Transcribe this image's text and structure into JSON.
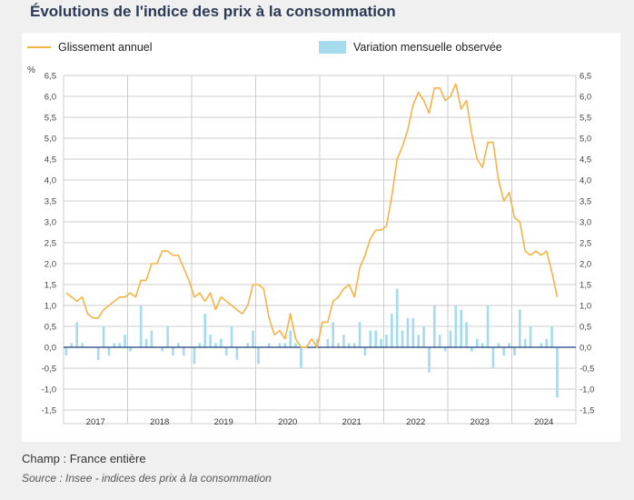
{
  "title": "Évolutions de l'indice des prix à la consommation",
  "footer": {
    "champ": "Champ : France entière",
    "source": "Source : Insee - indices des prix à la consommation"
  },
  "colors": {
    "line": "#f5b347",
    "bar": "#a6dbee",
    "axis": "#1f3d7a",
    "grid": "#cccccc"
  },
  "chart_data": {
    "type": "line",
    "unit_label": "%",
    "ylim": [
      -1.5,
      6.5
    ],
    "yticks": [
      "6,5",
      "6,0",
      "5,5",
      "5,0",
      "4,5",
      "4,0",
      "3,5",
      "3,0",
      "2,5",
      "2,0",
      "1,5",
      "1,0",
      "0,5",
      "0,0",
      "-0,5",
      "-1,0",
      "-1,5"
    ],
    "years": [
      "2017",
      "2018",
      "2019",
      "2020",
      "2021",
      "2022",
      "2023",
      "2024"
    ],
    "grid": true,
    "legend_position": "top",
    "series": [
      {
        "name": "Glissement annuel",
        "type": "line",
        "start": "2017-01",
        "values": [
          1.3,
          1.2,
          1.1,
          1.2,
          0.8,
          0.7,
          0.7,
          0.9,
          1.0,
          1.1,
          1.2,
          1.2,
          1.3,
          1.2,
          1.6,
          1.6,
          2.0,
          2.0,
          2.3,
          2.3,
          2.2,
          2.2,
          1.9,
          1.6,
          1.2,
          1.3,
          1.1,
          1.3,
          0.9,
          1.2,
          1.1,
          1.0,
          0.9,
          0.8,
          1.0,
          1.5,
          1.5,
          1.4,
          0.7,
          0.3,
          0.4,
          0.2,
          0.8,
          0.2,
          0.0,
          0.0,
          0.2,
          0.0,
          0.6,
          0.6,
          1.1,
          1.2,
          1.4,
          1.5,
          1.2,
          1.9,
          2.2,
          2.6,
          2.8,
          2.8,
          2.9,
          3.6,
          4.5,
          4.8,
          5.2,
          5.8,
          6.1,
          5.9,
          5.6,
          6.2,
          6.2,
          5.9,
          6.0,
          6.3,
          5.7,
          5.9,
          5.1,
          4.5,
          4.3,
          4.9,
          4.9,
          4.0,
          3.5,
          3.7,
          3.1,
          3.0,
          2.3,
          2.2,
          2.3,
          2.2,
          2.3,
          1.8,
          1.2
        ]
      },
      {
        "name": "Variation mensuelle observée",
        "type": "bar",
        "start": "2017-01",
        "values": [
          -0.2,
          0.1,
          0.6,
          0.1,
          0.0,
          0.0,
          -0.3,
          0.5,
          -0.2,
          0.1,
          0.1,
          0.3,
          -0.1,
          0.0,
          1.0,
          0.2,
          0.4,
          0.0,
          -0.1,
          0.5,
          -0.2,
          0.1,
          -0.2,
          0.0,
          -0.4,
          0.1,
          0.8,
          0.3,
          0.1,
          0.2,
          -0.2,
          0.5,
          -0.3,
          0.0,
          0.1,
          0.4,
          -0.4,
          0.0,
          0.1,
          0.0,
          0.1,
          0.1,
          0.4,
          0.1,
          -0.5,
          0.0,
          0.0,
          0.2,
          0.0,
          0.2,
          0.6,
          0.1,
          0.3,
          0.1,
          0.1,
          0.6,
          -0.2,
          0.4,
          0.4,
          0.2,
          0.3,
          0.8,
          1.4,
          0.4,
          0.7,
          0.7,
          0.3,
          0.5,
          -0.6,
          1.0,
          0.3,
          -0.1,
          0.4,
          1.0,
          0.9,
          0.6,
          -0.1,
          0.2,
          0.1,
          1.0,
          -0.5,
          0.1,
          -0.2,
          0.1,
          -0.2,
          0.9,
          0.2,
          0.5,
          0.0,
          0.1,
          0.2,
          0.5,
          -1.2
        ]
      }
    ]
  }
}
